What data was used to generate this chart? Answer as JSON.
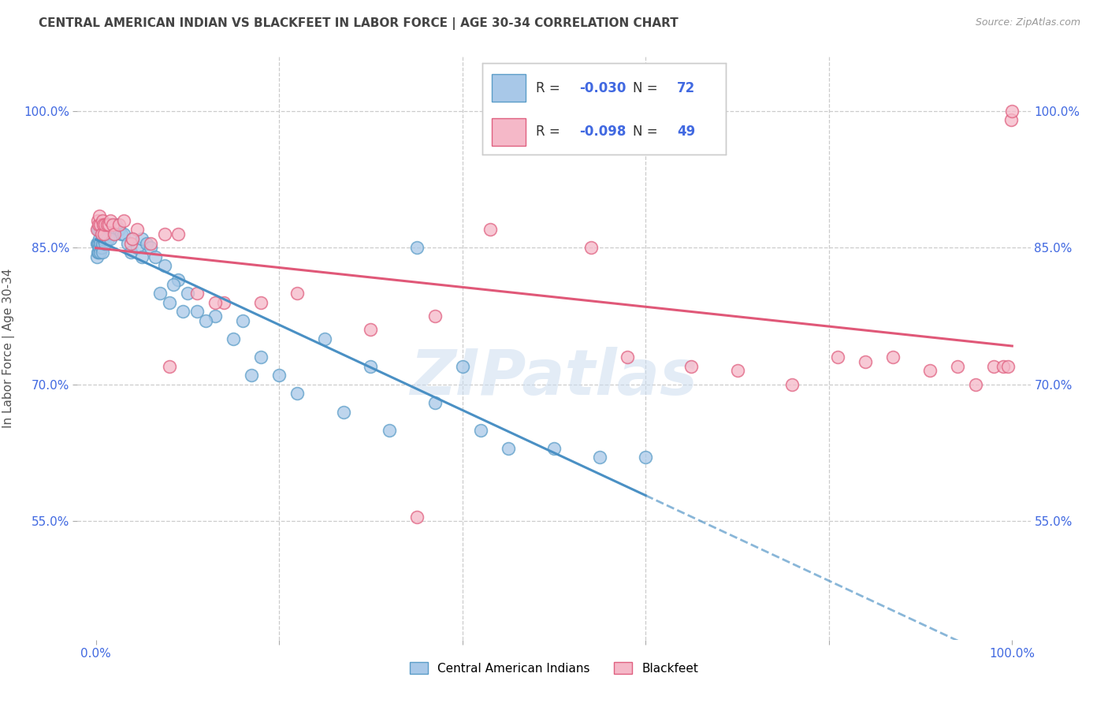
{
  "title": "CENTRAL AMERICAN INDIAN VS BLACKFEET IN LABOR FORCE | AGE 30-34 CORRELATION CHART",
  "source": "Source: ZipAtlas.com",
  "ylabel": "In Labor Force | Age 30-34",
  "watermark": "ZIPatlas",
  "legend_blue_R": "-0.030",
  "legend_blue_N": "72",
  "legend_pink_R": "-0.098",
  "legend_pink_N": "49",
  "xlim": [
    -0.02,
    1.02
  ],
  "ylim": [
    0.42,
    1.06
  ],
  "yticks": [
    0.55,
    0.7,
    0.85,
    1.0
  ],
  "ytick_labels": [
    "55.0%",
    "70.0%",
    "85.0%",
    "100.0%"
  ],
  "blue_x": [
    0.001,
    0.001,
    0.002,
    0.002,
    0.002,
    0.003,
    0.003,
    0.003,
    0.004,
    0.004,
    0.005,
    0.005,
    0.005,
    0.006,
    0.006,
    0.007,
    0.007,
    0.008,
    0.008,
    0.009,
    0.01,
    0.01,
    0.011,
    0.012,
    0.014,
    0.015,
    0.016,
    0.018,
    0.02,
    0.022,
    0.025,
    0.028,
    0.03,
    0.035,
    0.038,
    0.04,
    0.045,
    0.05,
    0.055,
    0.06,
    0.07,
    0.08,
    0.09,
    0.1,
    0.11,
    0.13,
    0.15,
    0.18,
    0.2,
    0.25,
    0.3,
    0.35,
    0.4,
    0.42,
    0.05,
    0.065,
    0.075,
    0.085,
    0.095,
    0.12,
    0.16,
    0.17,
    0.22,
    0.27,
    0.32,
    0.37,
    0.45,
    0.5,
    0.55,
    0.6,
    0.013,
    0.016
  ],
  "blue_y": [
    0.855,
    0.84,
    0.87,
    0.855,
    0.845,
    0.87,
    0.855,
    0.845,
    0.86,
    0.85,
    0.87,
    0.855,
    0.845,
    0.865,
    0.85,
    0.855,
    0.845,
    0.87,
    0.86,
    0.87,
    0.87,
    0.855,
    0.865,
    0.875,
    0.875,
    0.865,
    0.87,
    0.865,
    0.87,
    0.875,
    0.87,
    0.865,
    0.865,
    0.855,
    0.845,
    0.86,
    0.85,
    0.86,
    0.855,
    0.85,
    0.8,
    0.79,
    0.815,
    0.8,
    0.78,
    0.775,
    0.75,
    0.73,
    0.71,
    0.75,
    0.72,
    0.85,
    0.72,
    0.65,
    0.84,
    0.84,
    0.83,
    0.81,
    0.78,
    0.77,
    0.77,
    0.71,
    0.69,
    0.67,
    0.65,
    0.68,
    0.63,
    0.63,
    0.62,
    0.62,
    0.86,
    0.86
  ],
  "pink_x": [
    0.001,
    0.002,
    0.003,
    0.004,
    0.005,
    0.006,
    0.007,
    0.008,
    0.009,
    0.01,
    0.012,
    0.014,
    0.016,
    0.018,
    0.02,
    0.025,
    0.03,
    0.038,
    0.045,
    0.06,
    0.075,
    0.09,
    0.11,
    0.14,
    0.18,
    0.22,
    0.3,
    0.37,
    0.08,
    0.35,
    0.58,
    0.65,
    0.7,
    0.76,
    0.81,
    0.84,
    0.87,
    0.91,
    0.94,
    0.96,
    0.98,
    0.99,
    0.995,
    0.999,
    1.0,
    0.04,
    0.13,
    0.43,
    0.54
  ],
  "pink_y": [
    0.87,
    0.88,
    0.875,
    0.885,
    0.875,
    0.865,
    0.88,
    0.875,
    0.865,
    0.875,
    0.875,
    0.875,
    0.88,
    0.875,
    0.865,
    0.875,
    0.88,
    0.855,
    0.87,
    0.855,
    0.865,
    0.865,
    0.8,
    0.79,
    0.79,
    0.8,
    0.76,
    0.775,
    0.72,
    0.555,
    0.73,
    0.72,
    0.715,
    0.7,
    0.73,
    0.725,
    0.73,
    0.715,
    0.72,
    0.7,
    0.72,
    0.72,
    0.72,
    0.99,
    1.0,
    0.86,
    0.79,
    0.87,
    0.85
  ],
  "blue_color": "#a8c8e8",
  "blue_edge_color": "#5b9dc8",
  "pink_color": "#f5b8c8",
  "pink_edge_color": "#e06080",
  "blue_line_color": "#4a90c4",
  "pink_line_color": "#e05878",
  "background_color": "#ffffff",
  "grid_color": "#cccccc",
  "title_color": "#444444",
  "tick_label_color": "#4169E1"
}
